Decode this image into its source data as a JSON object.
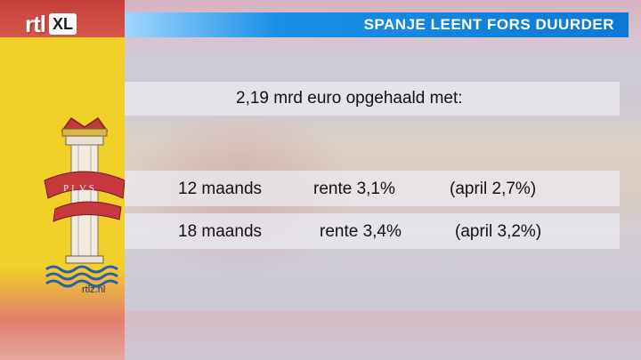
{
  "brand": {
    "rtl": "rtl",
    "xl": "XL"
  },
  "headline": "SPANJE LEENT FORS DUURDER",
  "summary": "2,19 mrd euro opgehaald met:",
  "rows": [
    {
      "term": "12 maands",
      "rate": "rente 3,1%",
      "previous": "(april 2,7%)"
    },
    {
      "term": "18 maands",
      "rate": "rente 3,4%",
      "previous": "(april 3,2%)"
    }
  ],
  "crest_banner": "PLVS",
  "footer_site": "rtlz.nl",
  "colors": {
    "title_bar": "#0a79d6",
    "flag_yellow": "#f2d02a",
    "flag_red": "#c33f3c"
  }
}
